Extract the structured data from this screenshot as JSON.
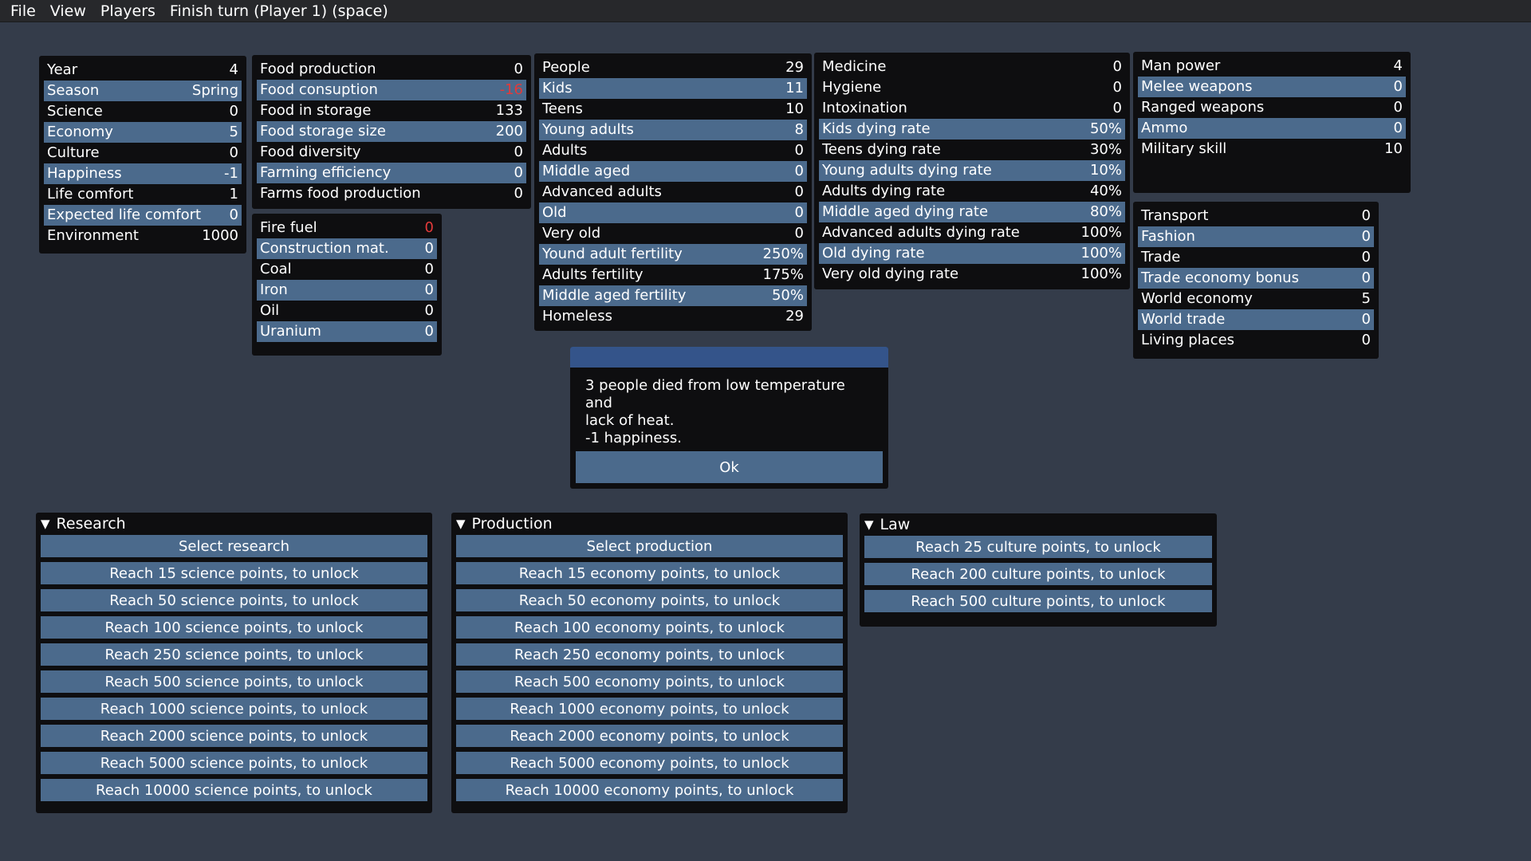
{
  "menu": [
    "File",
    "View",
    "Players",
    "Finish turn (Player 1) (space)"
  ],
  "panel_general": [
    {
      "label": "Year",
      "value": "4"
    },
    {
      "label": "Season",
      "value": "Spring"
    },
    {
      "label": "Science",
      "value": "0"
    },
    {
      "label": "Economy",
      "value": "5"
    },
    {
      "label": "Culture",
      "value": "0"
    },
    {
      "label": "Happiness",
      "value": "-1"
    },
    {
      "label": "Life comfort",
      "value": "1"
    },
    {
      "label": "Expected life comfort",
      "value": "0"
    },
    {
      "label": "Environment",
      "value": "1000"
    }
  ],
  "panel_food": [
    {
      "label": "Food production",
      "value": "0"
    },
    {
      "label": "Food consuption",
      "value": "-16",
      "negative": true
    },
    {
      "label": "Food in storage",
      "value": "133"
    },
    {
      "label": "Food storage size",
      "value": "200"
    },
    {
      "label": "Food diversity",
      "value": "0"
    },
    {
      "label": "Farming efficiency",
      "value": "0"
    },
    {
      "label": "Farms food production",
      "value": "0"
    }
  ],
  "panel_resources": [
    {
      "label": "Fire fuel",
      "value": "0",
      "negative": true
    },
    {
      "label": "Construction mat.",
      "value": "0"
    },
    {
      "label": "Coal",
      "value": "0"
    },
    {
      "label": "Iron",
      "value": "0"
    },
    {
      "label": "Oil",
      "value": "0"
    },
    {
      "label": "Uranium",
      "value": "0"
    }
  ],
  "panel_people": [
    {
      "label": "People",
      "value": "29"
    },
    {
      "label": "Kids",
      "value": "11"
    },
    {
      "label": "Teens",
      "value": "10"
    },
    {
      "label": "Young adults",
      "value": "8"
    },
    {
      "label": "Adults",
      "value": "0"
    },
    {
      "label": "Middle aged",
      "value": "0"
    },
    {
      "label": "Advanced adults",
      "value": "0"
    },
    {
      "label": "Old",
      "value": "0"
    },
    {
      "label": "Very old",
      "value": "0"
    },
    {
      "label": "Yound adult fertility",
      "value": "250%"
    },
    {
      "label": "Adults fertility",
      "value": "175%"
    },
    {
      "label": "Middle aged fertility",
      "value": "50%"
    },
    {
      "label": "Homeless",
      "value": "29"
    }
  ],
  "panel_health": [
    {
      "label": "Medicine",
      "value": "0"
    },
    {
      "label": "Hygiene",
      "value": "0"
    },
    {
      "label": "Intoxination",
      "value": "0"
    },
    {
      "label": "Kids dying rate",
      "value": "50%"
    },
    {
      "label": "Teens dying rate",
      "value": "30%"
    },
    {
      "label": "Young adults dying rate",
      "value": "10%"
    },
    {
      "label": "Adults dying rate",
      "value": "40%"
    },
    {
      "label": "Middle aged dying rate",
      "value": "80%"
    },
    {
      "label": "Advanced adults dying rate",
      "value": "100%"
    },
    {
      "label": "Old dying rate",
      "value": "100%"
    },
    {
      "label": "Very old dying rate",
      "value": "100%"
    }
  ],
  "panel_military": [
    {
      "label": "Man power",
      "value": "4"
    },
    {
      "label": "Melee weapons",
      "value": "0"
    },
    {
      "label": "Ranged weapons",
      "value": "0"
    },
    {
      "label": "Ammo",
      "value": "0"
    },
    {
      "label": "Military skill",
      "value": "10"
    }
  ],
  "panel_trade": [
    {
      "label": "Transport",
      "value": "0"
    },
    {
      "label": "Fashion",
      "value": "0"
    },
    {
      "label": "Trade",
      "value": "0"
    },
    {
      "label": "Trade economy bonus",
      "value": "0"
    },
    {
      "label": "World economy",
      "value": "5"
    },
    {
      "label": "World trade",
      "value": "0"
    },
    {
      "label": "Living places",
      "value": "0"
    }
  ],
  "modal": {
    "message_lines": [
      "3 people died from low temperature and",
      "lack of heat.",
      "-1 happiness."
    ],
    "ok_label": "Ok"
  },
  "research": {
    "title": "Research",
    "buttons": [
      "Select research",
      "Reach 15 science points, to unlock",
      "Reach 50 science points, to unlock",
      "Reach 100 science points, to unlock",
      "Reach 250 science points, to unlock",
      "Reach 500 science points, to unlock",
      "Reach 1000 science points, to unlock",
      "Reach 2000 science points, to unlock",
      "Reach 5000 science points, to unlock",
      "Reach 10000 science points, to unlock"
    ]
  },
  "production": {
    "title": "Production",
    "buttons": [
      "Select production",
      "Reach 15 economy points, to unlock",
      "Reach 50 economy points, to unlock",
      "Reach 100 economy points, to unlock",
      "Reach 250 economy points, to unlock",
      "Reach 500 economy points, to unlock",
      "Reach 1000 economy points, to unlock",
      "Reach 2000 economy points, to unlock",
      "Reach 5000 economy points, to unlock",
      "Reach 10000 economy points, to unlock"
    ]
  },
  "law": {
    "title": "Law",
    "buttons": [
      "Reach 25 culture points, to unlock",
      "Reach 200 culture points, to unlock",
      "Reach 500 culture points, to unlock"
    ]
  },
  "colors": {
    "background": "#343c4a",
    "panel": "#0e0e10",
    "highlight_row": "#4b6a8c",
    "negative_value": "#e23a3a",
    "modal_title": "#34548a"
  }
}
